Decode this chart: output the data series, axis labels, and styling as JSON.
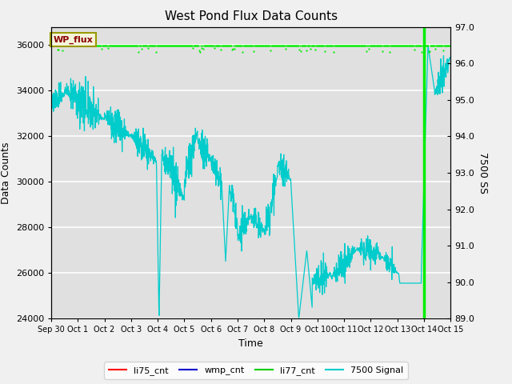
{
  "title": "West Pond Flux Data Counts",
  "xlabel": "Time",
  "ylabel": "Data Counts",
  "ylabel_right": "7500 SS",
  "annotation_text": "WP_flux",
  "annotation_color": "#8B0000",
  "annotation_bg": "#F5F5DC",
  "annotation_border": "#999900",
  "ylim_left": [
    24000,
    36800
  ],
  "ylim_right": [
    89.0,
    97.0
  ],
  "yticks_left": [
    24000,
    26000,
    28000,
    30000,
    32000,
    34000,
    36000
  ],
  "yticks_right": [
    89.0,
    90.0,
    91.0,
    92.0,
    93.0,
    94.0,
    95.0,
    96.0,
    97.0
  ],
  "xtick_labels": [
    "Sep 30",
    "Oct 1",
    "Oct 2",
    "Oct 3",
    "Oct 4",
    "Oct 5",
    "Oct 6",
    "Oct 7",
    "Oct 8",
    "Oct 9",
    "Oct 10",
    "Oct 11",
    "Oct 12",
    "Oct 13",
    "Oct 14",
    "Oct 15"
  ],
  "legend_entries": [
    "li75_cnt",
    "wmp_cnt",
    "li77_cnt",
    "7500 Signal"
  ],
  "legend_colors": [
    "#FF0000",
    "#0000CC",
    "#00CC00",
    "#00CCCC"
  ],
  "grid_color": "#FFFFFF",
  "bg_color": "#E0E0E0",
  "li77_color": "#00EE00",
  "cyan_color": "#00CCCC",
  "green_spike_color": "#00EE00"
}
